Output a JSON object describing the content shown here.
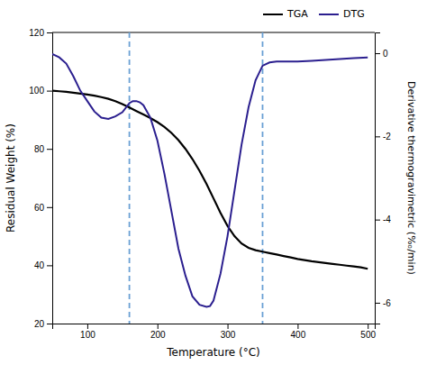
{
  "chart_data": {
    "type": "line",
    "xlabel": "Temperature (°C)",
    "ylabel": "Residual Weight (%)",
    "y2label": "Derivative thermogravimetric (%ₒ/min)",
    "xlim": [
      50,
      510
    ],
    "xticks": [
      100,
      200,
      300,
      400,
      500
    ],
    "ylim": [
      20,
      120
    ],
    "yticks": [
      20,
      40,
      60,
      80,
      100,
      120
    ],
    "y2lim": [
      -6.5,
      0.5
    ],
    "y2ticks": [
      0,
      -2,
      -4,
      -6
    ],
    "grid": false,
    "legend": "upper right",
    "vlines": {
      "values": [
        160,
        350
      ],
      "color": "#6aa0d4",
      "line_style": "dashed"
    },
    "series": [
      {
        "name": "TGA",
        "color": "#000000",
        "axis": "y",
        "x": [
          50,
          60,
          70,
          80,
          90,
          100,
          110,
          120,
          130,
          140,
          150,
          160,
          170,
          180,
          190,
          200,
          210,
          220,
          230,
          240,
          250,
          260,
          270,
          280,
          290,
          300,
          310,
          320,
          330,
          340,
          350,
          360,
          370,
          380,
          390,
          400,
          410,
          420,
          430,
          440,
          450,
          460,
          470,
          480,
          490,
          500
        ],
        "values": [
          100.0,
          99.8,
          99.6,
          99.3,
          99.0,
          98.7,
          98.3,
          97.8,
          97.2,
          96.4,
          95.4,
          94.2,
          93.0,
          91.8,
          90.6,
          89.2,
          87.5,
          85.5,
          83.0,
          80.0,
          76.5,
          72.5,
          68.0,
          63.0,
          58.0,
          53.5,
          50.0,
          47.5,
          46.0,
          45.2,
          44.7,
          44.2,
          43.7,
          43.2,
          42.7,
          42.2,
          41.8,
          41.4,
          41.1,
          40.8,
          40.5,
          40.2,
          39.9,
          39.6,
          39.3,
          38.8
        ]
      },
      {
        "name": "DTG",
        "color": "#2b1f8f",
        "axis": "y2",
        "x": [
          50,
          60,
          70,
          80,
          90,
          100,
          110,
          120,
          130,
          140,
          150,
          160,
          165,
          170,
          175,
          180,
          190,
          200,
          210,
          220,
          230,
          240,
          250,
          260,
          270,
          275,
          280,
          290,
          300,
          310,
          320,
          330,
          340,
          350,
          360,
          370,
          380,
          390,
          400,
          420,
          440,
          460,
          480,
          500
        ],
        "values": [
          -0.02,
          -0.1,
          -0.25,
          -0.55,
          -0.9,
          -1.15,
          -1.4,
          -1.55,
          -1.58,
          -1.52,
          -1.42,
          -1.2,
          -1.15,
          -1.15,
          -1.18,
          -1.25,
          -1.55,
          -2.1,
          -2.9,
          -3.8,
          -4.7,
          -5.35,
          -5.85,
          -6.05,
          -6.1,
          -6.08,
          -5.95,
          -5.3,
          -4.4,
          -3.3,
          -2.2,
          -1.3,
          -0.65,
          -0.3,
          -0.22,
          -0.2,
          -0.2,
          -0.2,
          -0.2,
          -0.18,
          -0.16,
          -0.14,
          -0.12,
          -0.1
        ]
      }
    ]
  }
}
